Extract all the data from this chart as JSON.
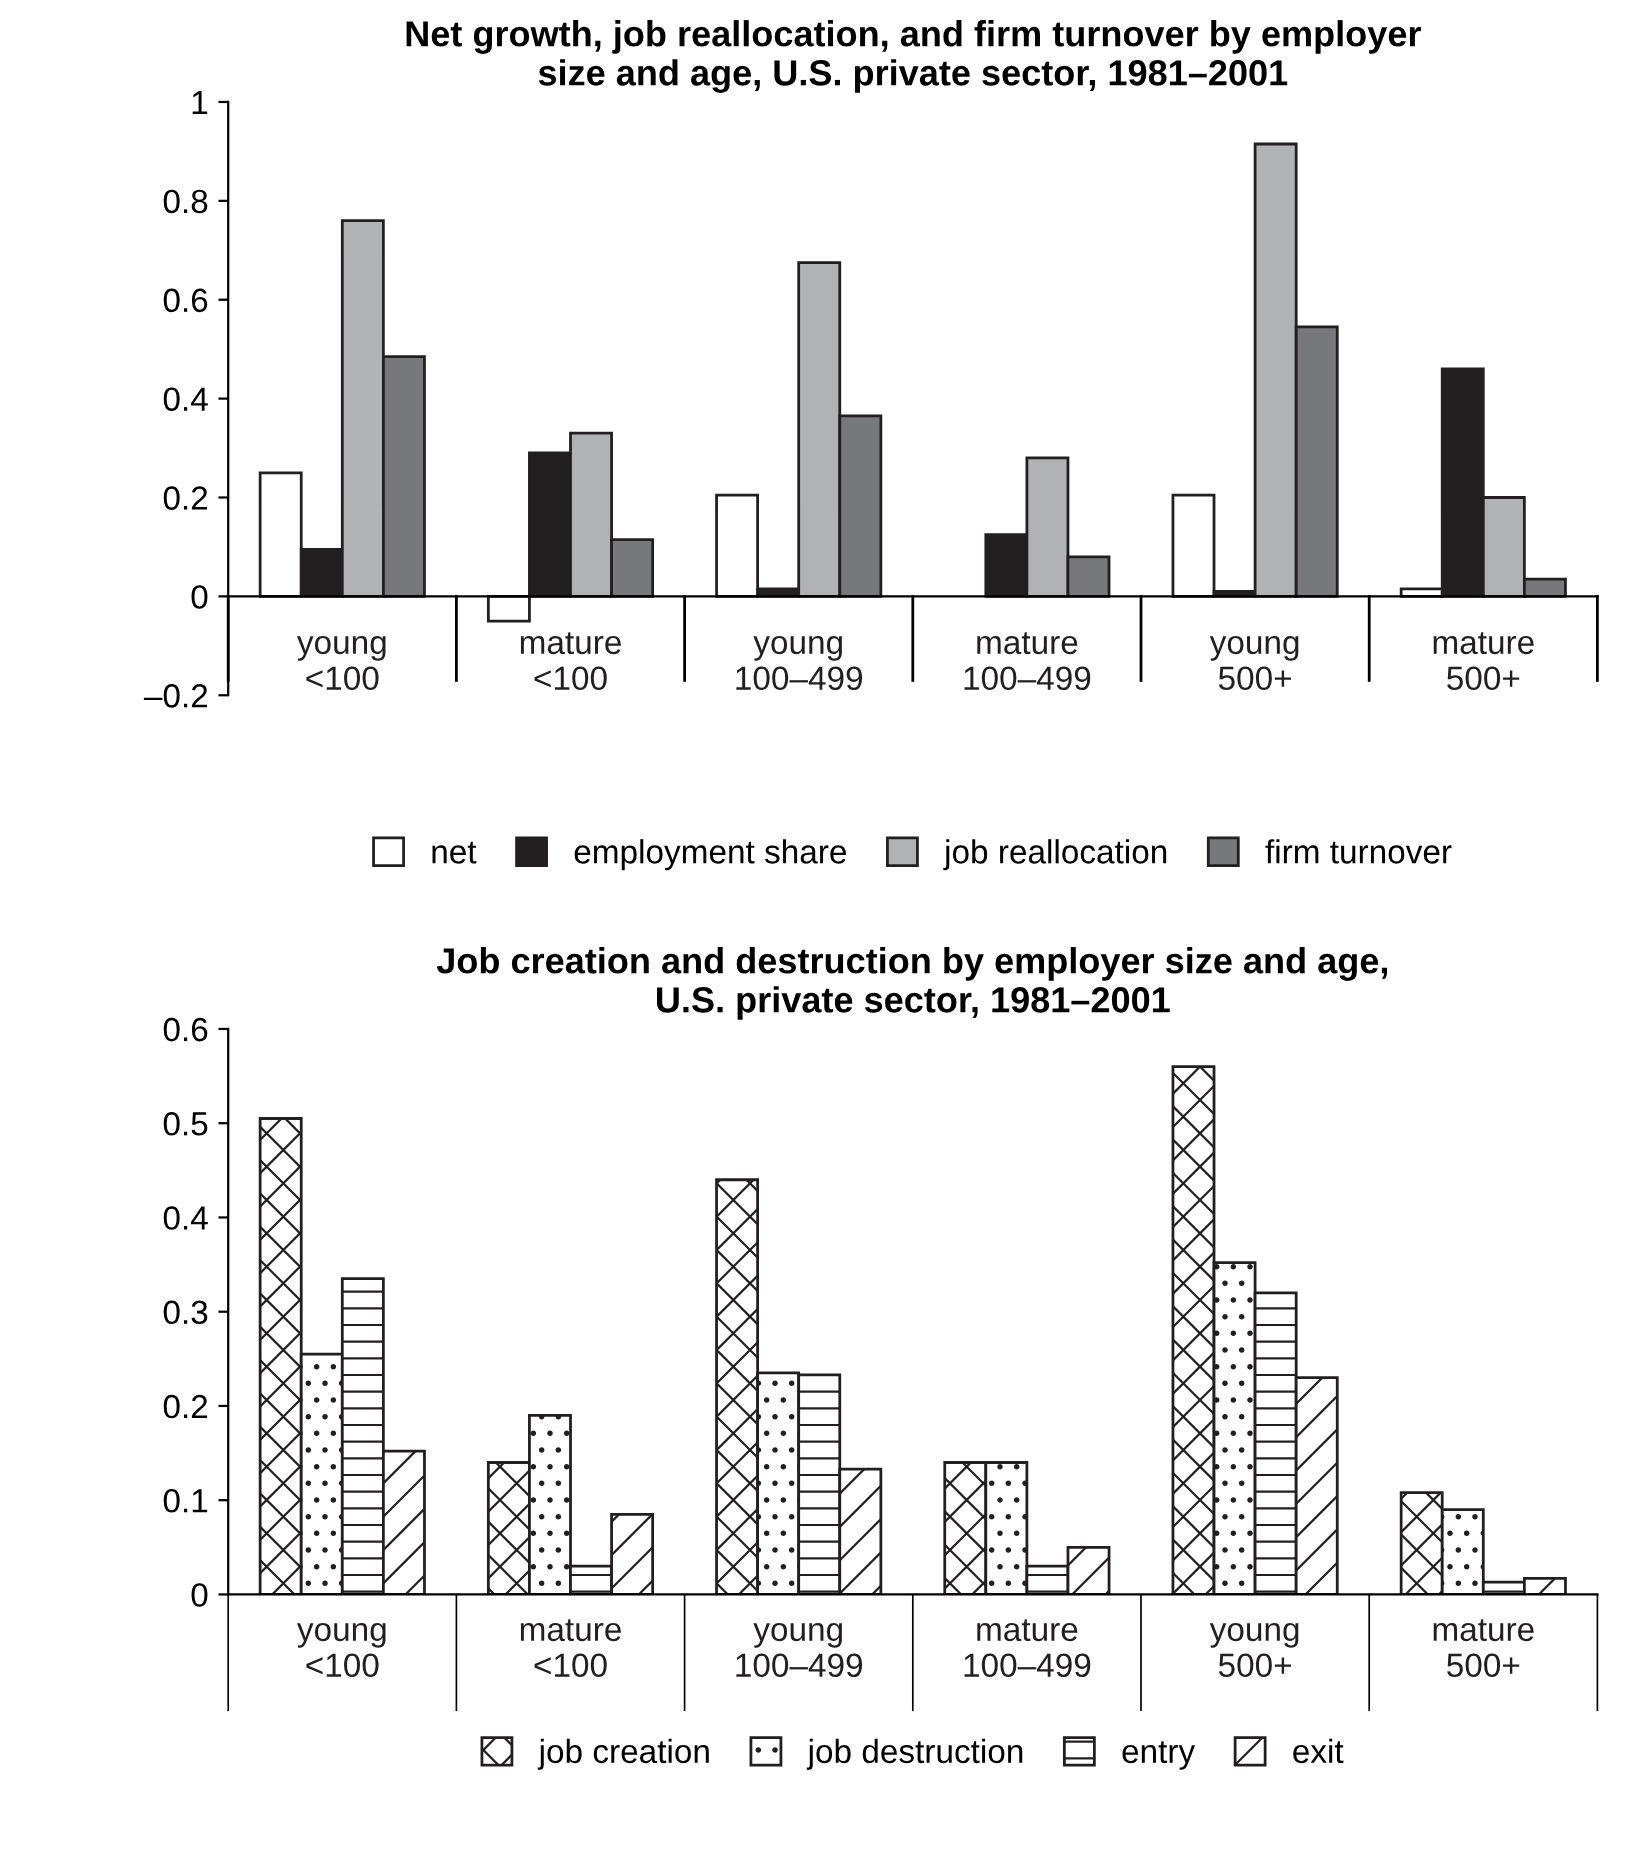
{
  "chart_data": [
    {
      "type": "bar",
      "title": "Net growth, job reallocation, and firm turnover by employer\nsize and age, U.S. private sector, 1981–2001",
      "categories": [
        "young\n<100",
        "mature\n<100",
        "young\n100–499",
        "mature\n100–499",
        "young\n500+",
        "mature\n500+"
      ],
      "series": [
        {
          "name": "net",
          "color": "#ffffff",
          "values": [
            0.25,
            -0.05,
            0.205,
            null,
            0.205,
            0.015
          ]
        },
        {
          "name": "employment share",
          "color": "#231f20",
          "values": [
            0.095,
            0.29,
            0.015,
            0.125,
            0.01,
            0.46
          ]
        },
        {
          "name": "job reallocation",
          "color": "#b0b2b4",
          "values": [
            0.76,
            0.33,
            0.675,
            0.28,
            0.915,
            0.2
          ]
        },
        {
          "name": "firm turnover",
          "color": "#77787b",
          "values": [
            0.485,
            0.115,
            0.365,
            0.08,
            0.545,
            0.035
          ]
        }
      ],
      "ylim": [
        -0.2,
        1
      ],
      "yticks": [
        {
          "value": -0.2,
          "label": "–0.2"
        },
        0,
        0.2,
        0.4,
        0.6,
        0.8,
        1
      ],
      "grid": false,
      "legend": "bottom"
    },
    {
      "type": "bar",
      "title": "Job creation and destruction by employer size and age,\nU.S. private sector, 1981–2001",
      "categories": [
        "young\n<100",
        "mature\n<100",
        "young\n100–499",
        "mature\n100–499",
        "young\n500+",
        "mature\n500+"
      ],
      "series": [
        {
          "name": "job creation",
          "color": "#231f20",
          "values": [
            0.505,
            0.14,
            0.44,
            0.14,
            0.56,
            0.108
          ]
        },
        {
          "name": "job destruction",
          "color": "#231f20",
          "values": [
            0.255,
            0.19,
            0.235,
            0.14,
            0.352,
            0.09
          ]
        },
        {
          "name": "entry",
          "color": "#231f20",
          "values": [
            0.335,
            0.03,
            0.233,
            0.03,
            0.32,
            0.013
          ]
        },
        {
          "name": "exit",
          "color": "#231f20",
          "values": [
            0.152,
            0.085,
            0.133,
            0.05,
            0.23,
            0.017
          ]
        }
      ],
      "ylim": [
        0,
        0.6
      ],
      "yticks": [
        0,
        0.1,
        0.2,
        0.3,
        0.4,
        0.5,
        0.6
      ],
      "grid": false,
      "legend": "bottom"
    }
  ]
}
